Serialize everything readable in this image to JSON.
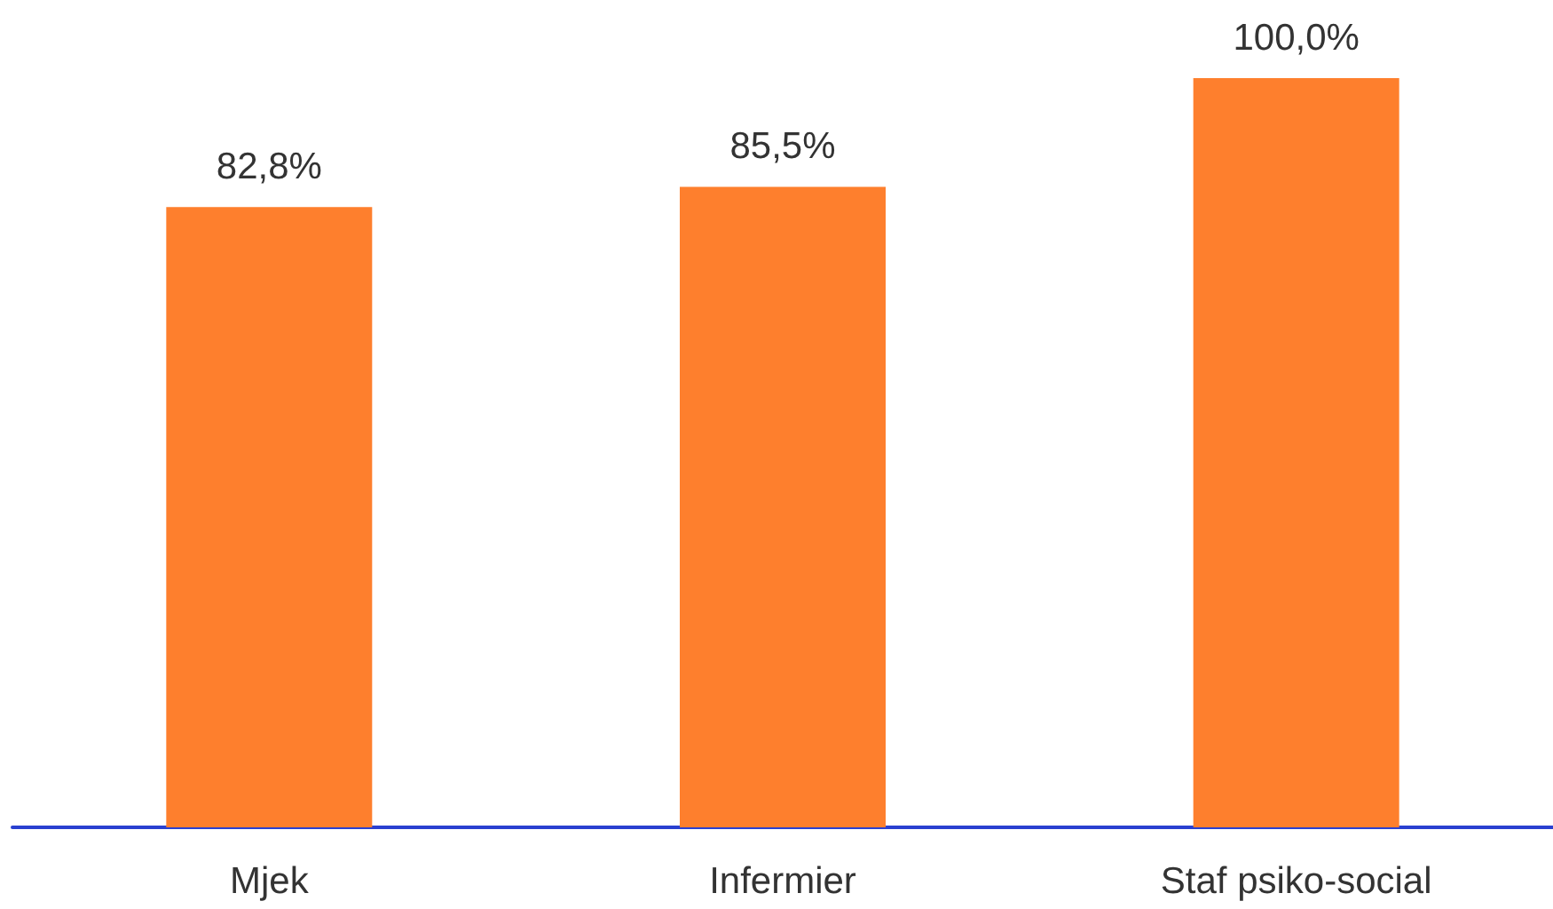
{
  "chart_data": {
    "type": "bar",
    "categories": [
      "Mjek",
      "Infermier",
      "Staf psiko-social"
    ],
    "values": [
      82.8,
      85.5,
      100.0
    ],
    "value_labels": [
      "82,8%",
      "85,5%",
      "100,0%"
    ],
    "color": "#fe7f2d"
  }
}
